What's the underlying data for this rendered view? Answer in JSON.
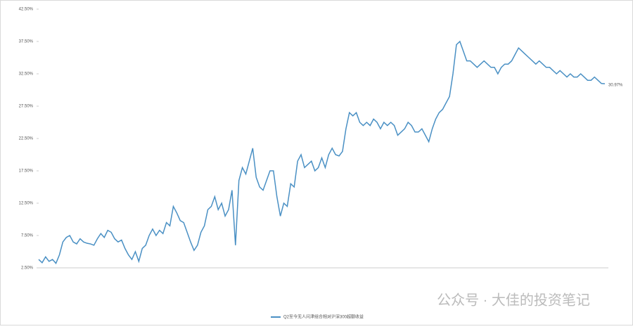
{
  "chart_data": {
    "type": "line",
    "legend_position": "bottom",
    "watermark": "公众号 · 大佳的投资笔记",
    "ylim": [
      2.5,
      42.5
    ],
    "yticks": [
      {
        "value": 2.5,
        "label": "2.50%"
      },
      {
        "value": 7.5,
        "label": "7.50%"
      },
      {
        "value": 12.5,
        "label": "12.50%"
      },
      {
        "value": 17.5,
        "label": "17.50%"
      },
      {
        "value": 22.5,
        "label": "22.50%"
      },
      {
        "value": 27.5,
        "label": "27.50%"
      },
      {
        "value": 32.5,
        "label": "32.50%"
      },
      {
        "value": 37.5,
        "label": "37.50%"
      },
      {
        "value": 42.5,
        "label": "42.50%"
      }
    ],
    "categories": [
      null,
      null,
      null,
      null,
      null,
      null,
      null,
      null,
      null,
      null,
      null,
      null,
      null,
      null,
      null,
      null,
      null,
      null,
      null,
      null,
      null,
      null,
      null,
      null,
      null,
      null,
      null,
      null,
      null,
      null,
      null,
      null,
      null,
      null,
      null,
      null,
      null,
      null,
      null,
      null,
      null,
      null,
      null,
      null,
      null,
      null,
      null,
      null,
      null,
      null,
      null,
      null,
      null,
      null,
      null,
      null,
      null,
      null,
      null,
      null,
      null,
      null,
      null,
      null,
      null,
      null,
      null,
      null,
      null,
      null,
      null,
      null,
      null,
      null,
      null,
      null,
      null,
      null,
      null,
      null,
      null,
      null,
      null,
      null,
      null,
      null,
      null,
      null,
      null,
      null,
      null,
      null,
      null,
      null,
      null,
      null,
      null,
      null,
      null,
      null,
      null,
      null,
      null,
      null,
      null,
      null,
      null,
      null,
      null,
      null,
      null,
      null,
      null,
      null,
      null,
      null,
      null,
      null,
      null,
      null,
      null,
      null,
      null,
      null,
      null,
      null,
      null,
      null,
      null,
      null,
      null,
      null,
      null,
      null,
      null,
      null,
      null,
      null,
      null,
      null,
      null,
      null,
      null,
      null,
      null,
      null,
      null,
      null,
      null,
      null,
      null,
      null,
      null,
      null,
      null,
      null,
      null,
      null,
      null,
      null,
      null,
      null,
      null,
      null,
      null
    ],
    "series": [
      {
        "name": "Q2至今无人问津组合相对沪深300超额收益",
        "color": "#4a90c4",
        "values": [
          3.8,
          3.3,
          4.2,
          3.5,
          3.8,
          3.2,
          4.5,
          6.5,
          7.2,
          7.5,
          6.5,
          6.2,
          7.0,
          6.5,
          6.3,
          6.2,
          6.0,
          7.0,
          7.8,
          7.2,
          8.3,
          8.0,
          7.0,
          6.5,
          6.8,
          5.5,
          4.5,
          3.8,
          5.0,
          3.5,
          5.5,
          6.0,
          7.5,
          8.5,
          7.5,
          8.3,
          7.8,
          9.5,
          9.0,
          12.0,
          11.0,
          9.8,
          9.5,
          8.0,
          6.5,
          5.2,
          6.0,
          8.0,
          9.0,
          11.5,
          12.0,
          13.5,
          11.5,
          12.5,
          10.5,
          11.5,
          14.5,
          6.0,
          16.0,
          18.0,
          17.0,
          19.0,
          21.0,
          16.5,
          15.0,
          14.5,
          16.0,
          17.5,
          17.5,
          13.5,
          10.5,
          12.5,
          12.0,
          15.5,
          15.0,
          19.0,
          20.0,
          18.0,
          18.5,
          19.0,
          17.5,
          18.0,
          19.5,
          18.0,
          20.0,
          21.0,
          20.0,
          19.8,
          20.5,
          24.0,
          26.5,
          26.0,
          26.5,
          25.0,
          24.5,
          25.0,
          24.5,
          25.5,
          25.0,
          24.0,
          25.0,
          24.5,
          25.0,
          24.5,
          23.0,
          23.5,
          24.0,
          25.0,
          24.5,
          23.5,
          23.5,
          24.0,
          23.0,
          22.0,
          24.0,
          25.5,
          26.5,
          27.0,
          28.0,
          29.0,
          32.5,
          37.0,
          37.5,
          36.0,
          34.5,
          34.5,
          34.0,
          33.5,
          34.0,
          34.5,
          34.0,
          33.5,
          33.5,
          32.5,
          33.5,
          34.0,
          34.0,
          34.5,
          35.5,
          36.5,
          36.0,
          35.5,
          35.0,
          34.5,
          34.0,
          34.5,
          34.0,
          33.5,
          33.5,
          33.0,
          32.5,
          33.0,
          32.5,
          32.0,
          32.5,
          32.0,
          32.0,
          32.5,
          32.0,
          31.5,
          31.5,
          32.0,
          31.5,
          31.0,
          30.97
        ],
        "value_labels": [
          null,
          null,
          null,
          null,
          null,
          null,
          null,
          null,
          null,
          null,
          null,
          null,
          null,
          null,
          null,
          null,
          null,
          null,
          null,
          null,
          null,
          null,
          null,
          null,
          null,
          null,
          null,
          null,
          null,
          null,
          null,
          null,
          null,
          null,
          null,
          null,
          null,
          null,
          null,
          null,
          null,
          null,
          null,
          null,
          null,
          null,
          null,
          null,
          null,
          null,
          null,
          null,
          null,
          null,
          null,
          null,
          null,
          null,
          null,
          null,
          null,
          null,
          null,
          null,
          null,
          null,
          null,
          null,
          null,
          null,
          null,
          null,
          null,
          null,
          null,
          null,
          null,
          null,
          null,
          null,
          null,
          null,
          null,
          null,
          null,
          null,
          null,
          null,
          null,
          null,
          null,
          null,
          null,
          null,
          null,
          null,
          null,
          null,
          null,
          null,
          null,
          null,
          null,
          null,
          null,
          null,
          null,
          null,
          null,
          null,
          null,
          null,
          null,
          null,
          null,
          null,
          null,
          null,
          null,
          null,
          null,
          null,
          null,
          null,
          null,
          null,
          null,
          null,
          null,
          null,
          null,
          null,
          null,
          null,
          null,
          null,
          null,
          null,
          null,
          null,
          null,
          null,
          null,
          null,
          null,
          null,
          null,
          null,
          null,
          null,
          null,
          null,
          null,
          null,
          null,
          null,
          null,
          null,
          null,
          null,
          null,
          null,
          null,
          null,
          "30.97%"
        ]
      }
    ]
  }
}
